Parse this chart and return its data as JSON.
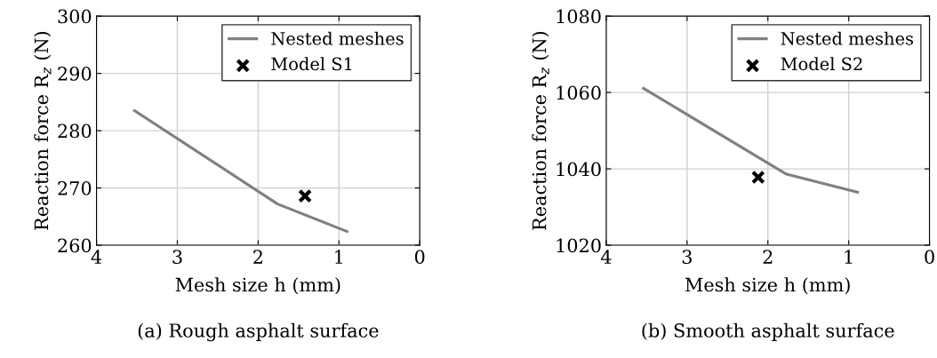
{
  "chart_data": [
    {
      "type": "line",
      "xlabel": "Mesh size h (mm)",
      "ylabel": "Reaction force R$_{z}$ (N)",
      "annotations": [
        "(a) Rough asphalt surface"
      ],
      "xlim": [
        4,
        0
      ],
      "xticks": [
        4,
        3,
        2,
        1,
        0
      ],
      "ylim": [
        260,
        300
      ],
      "yticks": [
        260,
        270,
        280,
        290,
        300
      ],
      "grid": true,
      "legend": "top right",
      "series": [
        {
          "name": "Nested meshes",
          "color": "#808080",
          "x": [
            3.53,
            1.76,
            0.9
          ],
          "values": [
            283.5,
            267.2,
            262.4
          ],
          "marker": "none",
          "line_style": "solid"
        },
        {
          "name": "Model S1",
          "type": "scatter",
          "color": "#000000",
          "x": [
            1.42
          ],
          "values": [
            268.6
          ],
          "marker": "cross"
        }
      ]
    },
    {
      "type": "line",
      "xlabel": "Mesh size h (mm)",
      "ylabel": "Reaction force R$_{z}$ (N)",
      "annotations": [
        "(b) Smooth asphalt surface"
      ],
      "xlim": [
        4,
        0
      ],
      "xticks": [
        4,
        3,
        2,
        1,
        0
      ],
      "ylim": [
        1020,
        1080
      ],
      "yticks": [
        1020,
        1040,
        1060,
        1080
      ],
      "grid": true,
      "legend": "top right",
      "series": [
        {
          "name": "Nested meshes",
          "color": "#808080",
          "x": [
            3.54,
            1.77,
            0.89
          ],
          "values": [
            1061.1,
            1038.6,
            1033.9
          ],
          "marker": "none",
          "line_style": "solid"
        },
        {
          "name": "Model S2",
          "type": "scatter",
          "color": "#000000",
          "x": [
            2.12
          ],
          "values": [
            1037.8
          ],
          "marker": "cross"
        }
      ]
    }
  ]
}
